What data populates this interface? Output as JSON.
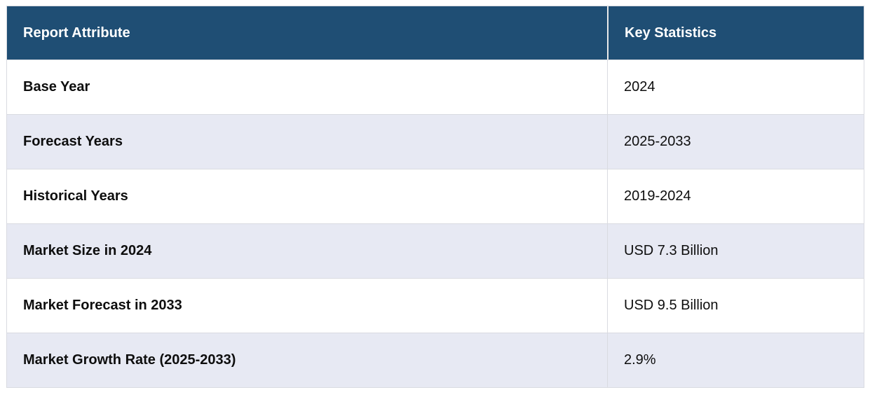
{
  "table": {
    "columns": [
      {
        "label": "Report Attribute"
      },
      {
        "label": "Key Statistics"
      }
    ],
    "rows": [
      {
        "attribute": "Base Year",
        "value": "2024"
      },
      {
        "attribute": "Forecast Years",
        "value": "2025-2033"
      },
      {
        "attribute": "Historical Years",
        "value": "2019-2024"
      },
      {
        "attribute": "Market Size in 2024",
        "value": "USD 7.3 Billion"
      },
      {
        "attribute": "Market Forecast in 2033",
        "value": "USD 9.5 Billion"
      },
      {
        "attribute": "Market Growth Rate (2025-2033)",
        "value": "2.9%"
      }
    ]
  },
  "theme": {
    "header_bg": "#1F4E74",
    "header_text": "#FFFFFF",
    "row_bg": "#FFFFFF",
    "row_alt_bg": "#E7E9F3",
    "border": "#D9DBE1",
    "divider": "#E9E9E9",
    "text": "#0E0E0E"
  }
}
